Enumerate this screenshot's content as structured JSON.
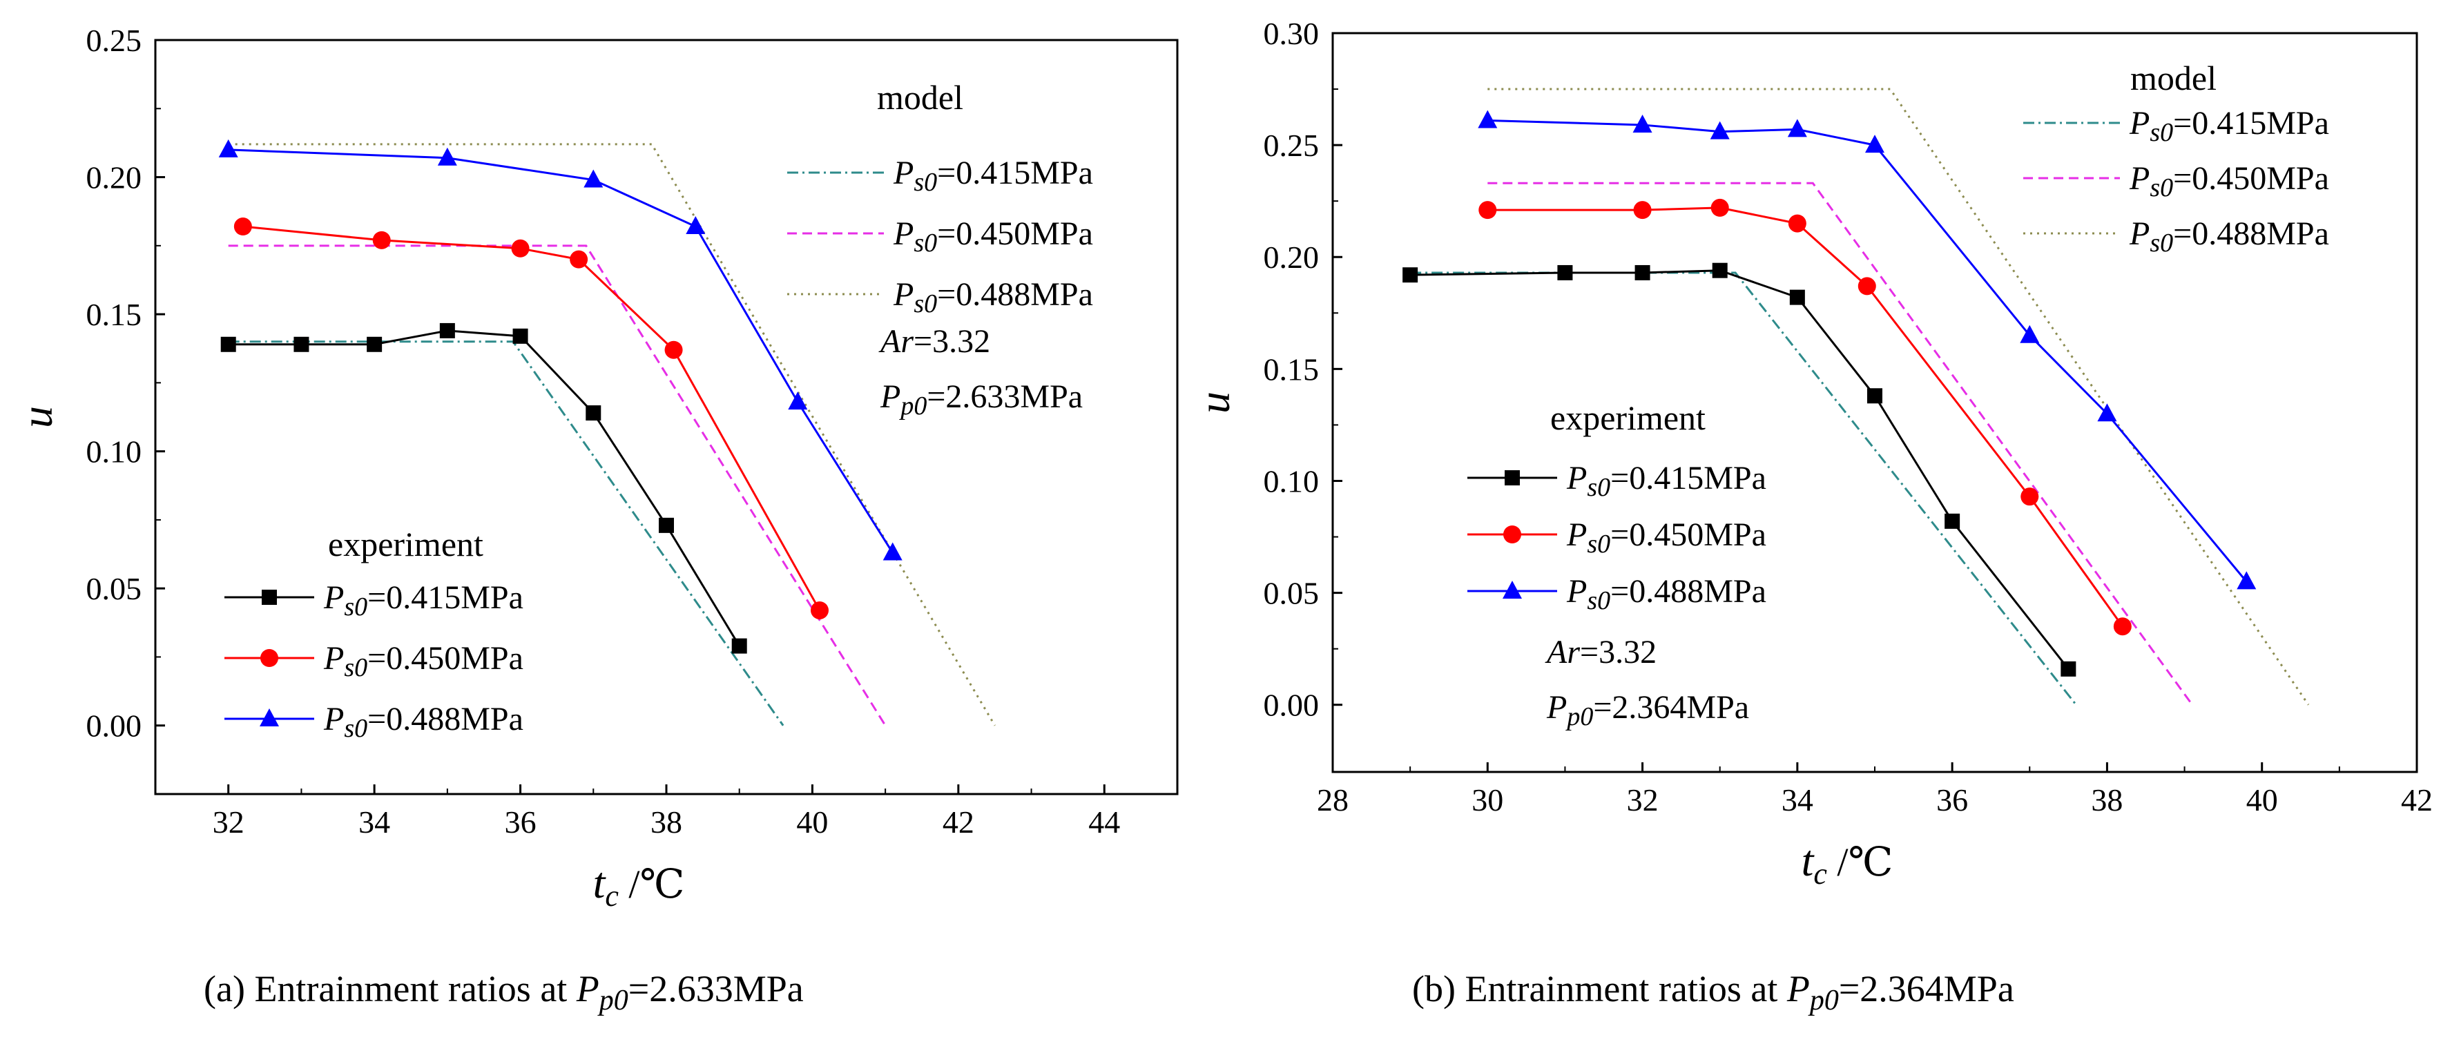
{
  "chart_data": [
    {
      "type": "line",
      "panel_label": "(a)",
      "caption_prefix": "Entrainment ratios at ",
      "caption_var": "P",
      "caption_sub": "p0",
      "caption_value": "=2.633MPa",
      "xlabel": "t",
      "xlabel_sub": "c",
      "xlabel_unit": " /℃",
      "ylabel": "u",
      "xlim": [
        31,
        45
      ],
      "ylim": [
        -0.025,
        0.25
      ],
      "xticks": [
        32,
        34,
        36,
        38,
        40,
        42,
        44
      ],
      "yticks": [
        0.0,
        0.05,
        0.1,
        0.15,
        0.2,
        0.25
      ],
      "xtick_labels": [
        "32",
        "34",
        "36",
        "38",
        "40",
        "42",
        "44"
      ],
      "ytick_labels": [
        "0.00",
        "0.05",
        "0.10",
        "0.15",
        "0.20",
        "0.25"
      ],
      "model_header": "model",
      "experiment_header": "experiment",
      "annotations": [
        {
          "var": "Ar",
          "value": "=3.32"
        },
        {
          "var": "P",
          "sub": "p0",
          "value": "=2.633MPa"
        }
      ],
      "model_series": [
        {
          "var": "P",
          "sub": "s0",
          "value": "=0.415MPa",
          "color": "#2e8b8b",
          "dash": "dashdot",
          "x": [
            32,
            35.9,
            39.6
          ],
          "y": [
            0.14,
            0.14,
            0.0
          ]
        },
        {
          "var": "P",
          "sub": "s0",
          "value": "=0.450MPa",
          "color": "#e62ee6",
          "dash": "dash",
          "x": [
            32,
            36.9,
            41.0
          ],
          "y": [
            0.175,
            0.175,
            0.0
          ]
        },
        {
          "var": "P",
          "sub": "s0",
          "value": "=0.488MPa",
          "color": "#8c8c50",
          "dash": "dot",
          "x": [
            32,
            37.8,
            42.5
          ],
          "y": [
            0.212,
            0.212,
            0.0
          ]
        }
      ],
      "experiment_series": [
        {
          "var": "P",
          "sub": "s0",
          "value": "=0.415MPa",
          "color": "#000000",
          "marker": "square",
          "x": [
            32,
            33,
            34,
            35,
            36,
            37,
            38,
            39
          ],
          "y": [
            0.139,
            0.139,
            0.139,
            0.144,
            0.142,
            0.114,
            0.073,
            0.029
          ]
        },
        {
          "var": "P",
          "sub": "s0",
          "value": "=0.450MPa",
          "color": "#ff0000",
          "marker": "circle",
          "x": [
            32.2,
            34.1,
            36.0,
            36.8,
            38.1,
            40.1
          ],
          "y": [
            0.182,
            0.177,
            0.174,
            0.17,
            0.137,
            0.042
          ]
        },
        {
          "var": "P",
          "sub": "s0",
          "value": "=0.488MPa",
          "color": "#0000ff",
          "marker": "triangle",
          "x": [
            32,
            35,
            37,
            38.4,
            39.8,
            41.1
          ],
          "y": [
            0.21,
            0.207,
            0.199,
            0.182,
            0.118,
            0.063
          ]
        }
      ]
    },
    {
      "type": "line",
      "panel_label": "(b)",
      "caption_prefix": "Entrainment ratios at ",
      "caption_var": "P",
      "caption_sub": "p0",
      "caption_value": "=2.364MPa",
      "xlabel": "t",
      "xlabel_sub": "c",
      "xlabel_unit": " /℃",
      "ylabel": "u",
      "xlim": [
        28,
        42
      ],
      "ylim": [
        -0.03,
        0.3
      ],
      "xticks": [
        28,
        30,
        32,
        34,
        36,
        38,
        40,
        42
      ],
      "yticks": [
        0.0,
        0.05,
        0.1,
        0.15,
        0.2,
        0.25,
        0.3
      ],
      "xtick_labels": [
        "28",
        "30",
        "32",
        "34",
        "36",
        "38",
        "40",
        "42"
      ],
      "ytick_labels": [
        "0.00",
        "0.05",
        "0.10",
        "0.15",
        "0.20",
        "0.25",
        "0.30"
      ],
      "model_header": "model",
      "experiment_header": "experiment",
      "annotations": [
        {
          "var": "Ar",
          "value": "=3.32"
        },
        {
          "var": "P",
          "sub": "p0",
          "value": "=2.364MPa"
        }
      ],
      "model_series": [
        {
          "var": "P",
          "sub": "s0",
          "value": "=0.415MPa",
          "color": "#2e8b8b",
          "dash": "dashdot",
          "x": [
            29,
            33.2,
            37.6
          ],
          "y": [
            0.193,
            0.193,
            0.0
          ]
        },
        {
          "var": "P",
          "sub": "s0",
          "value": "=0.450MPa",
          "color": "#e62ee6",
          "dash": "dash",
          "x": [
            30,
            34.2,
            39.1
          ],
          "y": [
            0.233,
            0.233,
            0.0
          ]
        },
        {
          "var": "P",
          "sub": "s0",
          "value": "=0.488MPa",
          "color": "#8c8c50",
          "dash": "dot",
          "x": [
            30,
            35.2,
            40.6
          ],
          "y": [
            0.275,
            0.275,
            0.0
          ]
        }
      ],
      "experiment_series": [
        {
          "var": "P",
          "sub": "s0",
          "value": "=0.415MPa",
          "color": "#000000",
          "marker": "square",
          "x": [
            29,
            31,
            32,
            33,
            34,
            35,
            36,
            37.5
          ],
          "y": [
            0.192,
            0.193,
            0.193,
            0.194,
            0.182,
            0.138,
            0.082,
            0.016
          ]
        },
        {
          "var": "P",
          "sub": "s0",
          "value": "=0.450MPa",
          "color": "#ff0000",
          "marker": "circle",
          "x": [
            30,
            32,
            33,
            34,
            34.9,
            37,
            38.2
          ],
          "y": [
            0.221,
            0.221,
            0.222,
            0.215,
            0.187,
            0.093,
            0.035
          ]
        },
        {
          "var": "P",
          "sub": "s0",
          "value": "=0.488MPa",
          "color": "#0000ff",
          "marker": "triangle",
          "x": [
            30,
            32,
            33,
            34,
            35,
            37,
            38,
            39.8
          ],
          "y": [
            0.261,
            0.259,
            0.256,
            0.257,
            0.25,
            0.165,
            0.13,
            0.055
          ]
        }
      ]
    }
  ]
}
